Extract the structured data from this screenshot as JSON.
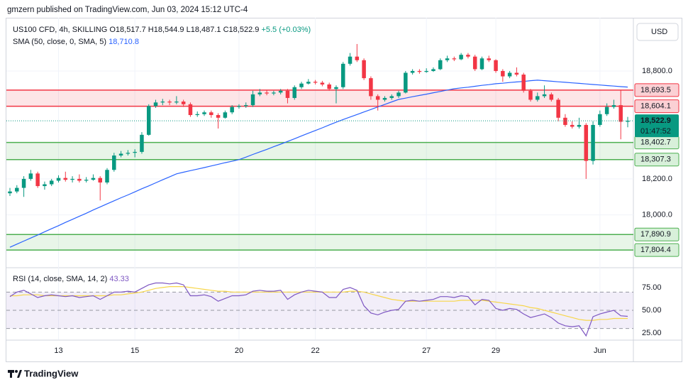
{
  "header": {
    "byline": "gmzern published on TradingView.com, Jun 03, 2024 15:12 UTC-4",
    "currency": "USD",
    "footer": "TradingView"
  },
  "chart_data": {
    "type": "candlestick",
    "symbol": "US100 CFD, 4h, SKILLING",
    "legend_values": [
      "O18,517.7",
      "H18,544.9",
      "L18,487.1",
      "C18,522.9",
      "+5.5 (+0.03%)"
    ],
    "up_color": "#089981",
    "down_color": "#f23645",
    "categories": [
      null,
      null,
      null,
      null,
      null,
      null,
      null,
      "13",
      null,
      null,
      null,
      null,
      null,
      null,
      null,
      null,
      null,
      null,
      "15",
      null,
      null,
      null,
      null,
      null,
      null,
      null,
      null,
      null,
      null,
      null,
      null,
      null,
      null,
      "20",
      null,
      null,
      null,
      null,
      null,
      null,
      null,
      null,
      null,
      null,
      "22",
      null,
      null,
      null,
      null,
      null,
      null,
      null,
      null,
      null,
      null,
      null,
      null,
      null,
      null,
      null,
      "27",
      null,
      null,
      null,
      null,
      null,
      null,
      null,
      null,
      null,
      "29",
      null,
      null,
      null,
      null,
      null,
      null,
      null,
      null,
      null,
      null,
      null,
      null,
      null,
      null,
      "Jun",
      null,
      null,
      null,
      null
    ],
    "candles": [
      [
        18120,
        18150,
        18105,
        18130
      ],
      [
        18130,
        18165,
        18120,
        18150
      ],
      [
        18150,
        18215,
        18100,
        18200
      ],
      [
        18200,
        18250,
        18190,
        18230
      ],
      [
        18230,
        18240,
        18150,
        18160
      ],
      [
        18160,
        18185,
        18140,
        18170
      ],
      [
        18170,
        18200,
        18160,
        18190
      ],
      [
        18190,
        18220,
        18180,
        18205
      ],
      [
        18205,
        18240,
        18185,
        18195
      ],
      [
        18195,
        18215,
        18180,
        18200
      ],
      [
        18200,
        18225,
        18180,
        18190
      ],
      [
        18190,
        18210,
        18180,
        18195
      ],
      [
        18195,
        18225,
        18190,
        18205
      ],
      [
        18205,
        18215,
        18080,
        18180
      ],
      [
        18180,
        18260,
        18170,
        18250
      ],
      [
        18250,
        18345,
        18240,
        18330
      ],
      [
        18330,
        18355,
        18320,
        18340
      ],
      [
        18340,
        18360,
        18330,
        18345
      ],
      [
        18345,
        18365,
        18320,
        18350
      ],
      [
        18350,
        18460,
        18340,
        18445
      ],
      [
        18445,
        18615,
        18440,
        18605
      ],
      [
        18605,
        18640,
        18595,
        18625
      ],
      [
        18625,
        18645,
        18610,
        18630
      ],
      [
        18630,
        18640,
        18610,
        18625
      ],
      [
        18625,
        18660,
        18615,
        18630
      ],
      [
        18630,
        18640,
        18600,
        18615
      ],
      [
        18615,
        18625,
        18545,
        18555
      ],
      [
        18555,
        18575,
        18545,
        18560
      ],
      [
        18560,
        18580,
        18550,
        18570
      ],
      [
        18570,
        18580,
        18540,
        18555
      ],
      [
        18555,
        18565,
        18480,
        18540
      ],
      [
        18540,
        18580,
        18535,
        18570
      ],
      [
        18570,
        18610,
        18560,
        18600
      ],
      [
        18600,
        18615,
        18590,
        18605
      ],
      [
        18605,
        18625,
        18595,
        18610
      ],
      [
        18610,
        18690,
        18600,
        18670
      ],
      [
        18670,
        18700,
        18660,
        18680
      ],
      [
        18680,
        18695,
        18665,
        18675
      ],
      [
        18675,
        18690,
        18665,
        18680
      ],
      [
        18680,
        18700,
        18670,
        18690
      ],
      [
        18690,
        18700,
        18620,
        18650
      ],
      [
        18650,
        18720,
        18640,
        18710
      ],
      [
        18710,
        18740,
        18700,
        18730
      ],
      [
        18730,
        18755,
        18725,
        18740
      ],
      [
        18740,
        18750,
        18725,
        18735
      ],
      [
        18735,
        18745,
        18715,
        18725
      ],
      [
        18725,
        18735,
        18690,
        18700
      ],
      [
        18700,
        18720,
        18620,
        18710
      ],
      [
        18710,
        18850,
        18700,
        18840
      ],
      [
        18840,
        18900,
        18830,
        18880
      ],
      [
        18880,
        18950,
        18850,
        18860
      ],
      [
        18860,
        18870,
        18750,
        18760
      ],
      [
        18760,
        18770,
        18640,
        18660
      ],
      [
        18660,
        18670,
        18580,
        18640
      ],
      [
        18640,
        18660,
        18630,
        18650
      ],
      [
        18650,
        18670,
        18640,
        18660
      ],
      [
        18660,
        18690,
        18650,
        18680
      ],
      [
        18680,
        18800,
        18675,
        18790
      ],
      [
        18790,
        18810,
        18780,
        18800
      ],
      [
        18800,
        18810,
        18785,
        18795
      ],
      [
        18795,
        18815,
        18790,
        18800
      ],
      [
        18800,
        18820,
        18795,
        18810
      ],
      [
        18810,
        18870,
        18805,
        18860
      ],
      [
        18860,
        18885,
        18850,
        18870
      ],
      [
        18870,
        18880,
        18855,
        18865
      ],
      [
        18865,
        18900,
        18860,
        18890
      ],
      [
        18890,
        18900,
        18870,
        18880
      ],
      [
        18880,
        18890,
        18800,
        18810
      ],
      [
        18810,
        18880,
        18805,
        18870
      ],
      [
        18870,
        18885,
        18850,
        18860
      ],
      [
        18860,
        18865,
        18790,
        18800
      ],
      [
        18800,
        18810,
        18740,
        18770
      ],
      [
        18770,
        18800,
        18760,
        18790
      ],
      [
        18790,
        18820,
        18770,
        18780
      ],
      [
        18780,
        18790,
        18680,
        18690
      ],
      [
        18690,
        18700,
        18630,
        18640
      ],
      [
        18640,
        18680,
        18630,
        18660
      ],
      [
        18660,
        18720,
        18650,
        18670
      ],
      [
        18670,
        18680,
        18630,
        18640
      ],
      [
        18640,
        18650,
        18520,
        18540
      ],
      [
        18540,
        18560,
        18490,
        18500
      ],
      [
        18500,
        18520,
        18480,
        18490
      ],
      [
        18490,
        18540,
        18480,
        18500
      ],
      [
        18500,
        18510,
        18200,
        18300
      ],
      [
        18300,
        18520,
        18280,
        18500
      ],
      [
        18500,
        18580,
        18490,
        18560
      ],
      [
        18560,
        18620,
        18550,
        18600
      ],
      [
        18600,
        18640,
        18590,
        18610
      ],
      [
        18610,
        18693,
        18420,
        18517.7
      ],
      [
        18517.7,
        18544.9,
        18487.1,
        18522.9
      ]
    ],
    "sma": {
      "name": "SMA (50, close, 0, SMA, 5)",
      "label": "18,710.8",
      "color": "#2962ff",
      "values": [
        17820,
        17837,
        17854,
        17871,
        17888,
        17906,
        17923,
        17940,
        17958,
        17975,
        17992,
        18009,
        18027,
        18044,
        18061,
        18078,
        18095,
        18111,
        18128,
        18145,
        18161,
        18178,
        18195,
        18211,
        18228,
        18237,
        18246,
        18254,
        18263,
        18272,
        18281,
        18290,
        18298,
        18307,
        18321,
        18336,
        18350,
        18364,
        18379,
        18393,
        18408,
        18423,
        18439,
        18454,
        18469,
        18484,
        18500,
        18515,
        18530,
        18544,
        18558,
        18572,
        18586,
        18600,
        18614,
        18628,
        18642,
        18649,
        18657,
        18664,
        18671,
        18679,
        18686,
        18694,
        18701,
        18706,
        18710,
        18715,
        18720,
        18724,
        18729,
        18732,
        18736,
        18739,
        18742,
        18746,
        18749,
        18746,
        18743,
        18740,
        18737,
        18734,
        18731,
        18728,
        18725,
        18722,
        18719,
        18716,
        18713,
        18710.8
      ]
    },
    "last_price": {
      "value": 18522.9,
      "label": "18,522.9",
      "countdown": "01:47:52",
      "color": "#089981"
    },
    "zones": [
      {
        "top": 18693.5,
        "bottom": 18604.1,
        "top_label": "18,693.5",
        "bottom_label": "18,604.1",
        "color": "#f23645"
      },
      {
        "top": 18402.7,
        "bottom": 18307.3,
        "top_label": "18,402.7",
        "bottom_label": "18,307.3",
        "color": "#4caf50"
      },
      {
        "top": 17890.9,
        "bottom": 17804.4,
        "top_label": "17,890.9",
        "bottom_label": "17,804.4",
        "color": "#4caf50"
      }
    ],
    "ylim": [
      17714,
      19096
    ],
    "yticks": [
      {
        "value": 18000,
        "label": "18,000.0"
      },
      {
        "value": 18200,
        "label": "18,200.0"
      },
      {
        "value": 18800,
        "label": "18,800.0"
      }
    ],
    "rsi": {
      "name": "RSI (14, close, SMA, 14, 2)",
      "label": "43.33",
      "color": "#7e57c2",
      "ma_color": "#f7d64a",
      "ylim": [
        18,
        96
      ],
      "levels": [
        70,
        50,
        30
      ],
      "yticks": [
        {
          "value": 75,
          "label": "75.00"
        },
        {
          "value": 50,
          "label": "50.00"
        },
        {
          "value": 25,
          "label": "25.00"
        }
      ],
      "values": [
        65,
        70,
        72,
        68,
        64,
        66,
        67,
        66,
        65,
        66,
        64,
        65,
        66,
        62,
        66,
        70,
        70,
        71,
        70,
        74,
        78,
        80,
        80,
        79,
        80,
        78,
        66,
        66,
        67,
        65,
        60,
        63,
        66,
        66,
        67,
        71,
        72,
        71,
        71,
        72,
        62,
        67,
        70,
        72,
        71,
        70,
        64,
        64,
        73,
        75,
        72,
        55,
        47,
        45,
        48,
        50,
        51,
        60,
        61,
        60,
        61,
        62,
        65,
        65,
        64,
        66,
        65,
        56,
        62,
        61,
        52,
        50,
        52,
        51,
        46,
        42,
        44,
        46,
        42,
        36,
        33,
        32,
        33,
        22,
        43,
        46,
        48,
        50,
        44,
        43.33
      ],
      "ma": [
        66,
        66,
        67,
        67,
        67,
        66,
        66,
        66,
        66,
        66,
        66,
        66,
        66,
        66,
        66,
        67,
        67,
        68,
        69,
        70,
        72,
        74,
        75,
        76,
        76,
        76,
        75,
        74,
        73,
        72,
        71,
        71,
        70,
        70,
        70,
        70,
        70,
        70,
        70,
        70,
        70,
        70,
        70,
        70,
        70,
        70,
        70,
        70,
        70,
        71,
        71,
        70,
        68,
        66,
        64,
        62,
        61,
        60,
        60,
        60,
        60,
        60,
        60,
        60,
        60,
        61,
        61,
        61,
        61,
        60,
        59,
        58,
        57,
        56,
        55,
        53,
        52,
        50,
        48,
        46,
        44,
        42,
        40,
        39,
        39,
        40,
        40,
        41,
        41,
        41
      ]
    }
  }
}
